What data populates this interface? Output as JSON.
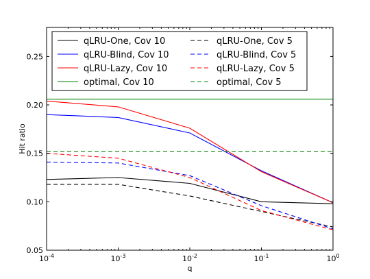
{
  "chart_data": {
    "type": "line",
    "xlabel": "q",
    "ylabel": "Hit ratio",
    "xscale": "log",
    "xlim": [
      0.0001,
      1
    ],
    "ylim": [
      0.05,
      0.28
    ],
    "x": [
      0.0001,
      0.001,
      0.01,
      0.1,
      1
    ],
    "x_tick_labels": [
      {
        "base": "10",
        "exp": "-4"
      },
      {
        "base": "10",
        "exp": "-3"
      },
      {
        "base": "10",
        "exp": "-2"
      },
      {
        "base": "10",
        "exp": "-1"
      },
      {
        "base": "10",
        "exp": "0"
      }
    ],
    "y_ticks": [
      0.05,
      0.1,
      0.15,
      0.2,
      0.25
    ],
    "y_tick_labels": [
      "0.05",
      "0.10",
      "0.15",
      "0.20",
      "0.25"
    ],
    "grid": false,
    "legend_position": "top",
    "series": [
      {
        "name": "qLRU-One, Cov 10",
        "color": "#000000",
        "dash": "solid",
        "values": [
          0.123,
          0.125,
          0.119,
          0.1,
          0.098
        ]
      },
      {
        "name": "qLRU-Blind, Cov 10",
        "color": "#0000ff",
        "dash": "solid",
        "values": [
          0.19,
          0.187,
          0.171,
          0.132,
          0.099
        ]
      },
      {
        "name": "qLRU-Lazy, Cov 10",
        "color": "#ff0000",
        "dash": "solid",
        "values": [
          0.204,
          0.198,
          0.176,
          0.131,
          0.099
        ]
      },
      {
        "name": "optimal, Cov 10",
        "color": "#008000",
        "dash": "solid",
        "values": [
          0.206,
          0.206,
          0.206,
          0.206,
          0.206
        ]
      },
      {
        "name": "qLRU-One, Cov 5",
        "color": "#000000",
        "dash": "dashed",
        "values": [
          0.118,
          0.118,
          0.106,
          0.09,
          0.074
        ]
      },
      {
        "name": "qLRU-Blind, Cov 5",
        "color": "#0000ff",
        "dash": "dashed",
        "values": [
          0.141,
          0.14,
          0.127,
          0.096,
          0.072
        ]
      },
      {
        "name": "qLRU-Lazy, Cov 5",
        "color": "#ff0000",
        "dash": "dashed",
        "values": [
          0.15,
          0.145,
          0.125,
          0.091,
          0.071
        ]
      },
      {
        "name": "optimal, Cov 5",
        "color": "#008000",
        "dash": "dashed",
        "values": [
          0.152,
          0.152,
          0.152,
          0.152,
          0.152
        ]
      }
    ]
  }
}
